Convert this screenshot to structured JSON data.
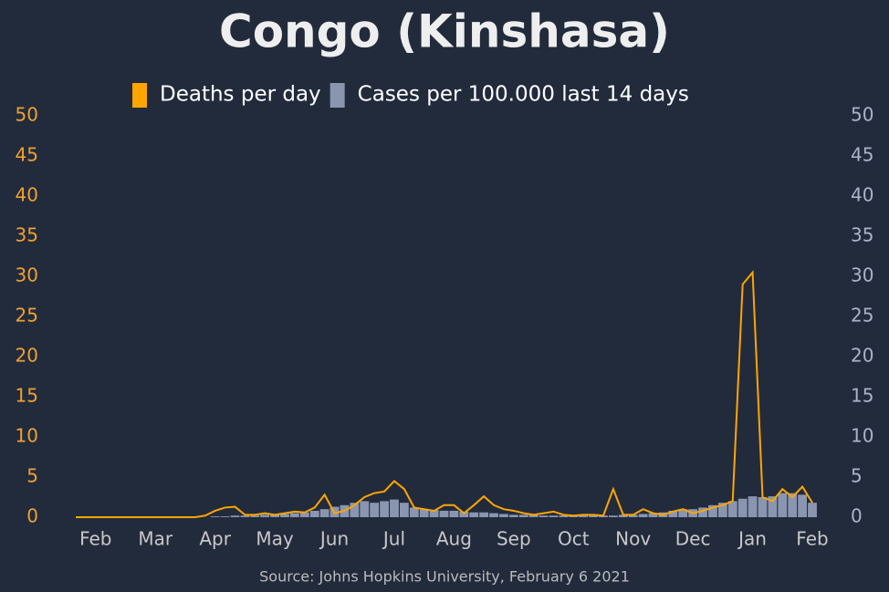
{
  "chart_data": {
    "type": "line-bar",
    "title": "Congo (Kinshasa)",
    "source": "Source: Johns Hopkins University, February 6 2021",
    "categories": [
      null,
      null,
      "Feb",
      null,
      null,
      null,
      null,
      null,
      "Mar",
      null,
      null,
      null,
      null,
      null,
      "Apr",
      null,
      null,
      null,
      null,
      null,
      "May",
      null,
      null,
      null,
      null,
      null,
      "Jun",
      null,
      null,
      null,
      null,
      null,
      "Jul",
      null,
      null,
      null,
      null,
      null,
      "Aug",
      null,
      null,
      null,
      null,
      null,
      "Sep",
      null,
      null,
      null,
      null,
      null,
      "Oct",
      null,
      null,
      null,
      null,
      null,
      "Nov",
      null,
      null,
      null,
      null,
      null,
      "Dec",
      null,
      null,
      null,
      null,
      null,
      "Jan",
      null,
      null,
      null,
      null,
      null,
      "Feb"
    ],
    "series": [
      {
        "name": "Deaths per day",
        "color": "#ffa500",
        "kind": "line",
        "values": [
          0,
          0,
          0,
          0,
          0,
          0,
          0,
          0,
          0,
          0,
          0,
          0,
          0,
          0.2,
          0.8,
          1.2,
          1.3,
          0.3,
          0.3,
          0.5,
          0.3,
          0.5,
          0.7,
          0.6,
          1.2,
          2.8,
          0.5,
          0.8,
          1.5,
          2.5,
          3.0,
          3.2,
          4.5,
          3.5,
          1.2,
          1.0,
          0.8,
          1.5,
          1.5,
          0.5,
          1.5,
          2.6,
          1.5,
          1.0,
          0.8,
          0.5,
          0.3,
          0.5,
          0.7,
          0.3,
          0.2,
          0.3,
          0.3,
          0.2,
          3.5,
          0.3,
          0.3,
          1.0,
          0.5,
          0.3,
          0.7,
          1.0,
          0.5,
          0.8,
          1.2,
          1.5,
          2.0,
          29,
          30.5,
          2.5,
          2.0,
          3.5,
          2.5,
          3.8,
          1.8
        ]
      },
      {
        "name": "Cases per 100.000 last 14 days",
        "color": "#8a96b0",
        "kind": "bar",
        "axis": "y2",
        "values": [
          0,
          0,
          0,
          0,
          0,
          0,
          0,
          0,
          0,
          0,
          0,
          0,
          0,
          0,
          0.1,
          0.1,
          0.2,
          0.2,
          0.2,
          0.3,
          0.3,
          0.4,
          0.5,
          0.6,
          0.8,
          1.0,
          1.3,
          1.5,
          1.8,
          2.0,
          1.8,
          2.0,
          2.2,
          1.8,
          1.2,
          1.0,
          0.9,
          0.8,
          0.8,
          0.7,
          0.6,
          0.6,
          0.5,
          0.4,
          0.3,
          0.3,
          0.3,
          0.2,
          0.2,
          0.2,
          0.2,
          0.2,
          0.2,
          0.2,
          0.2,
          0.3,
          0.3,
          0.4,
          0.5,
          0.6,
          0.8,
          1.0,
          1.0,
          1.2,
          1.5,
          1.8,
          2.0,
          2.3,
          2.6,
          2.5,
          2.6,
          3.0,
          3.0,
          2.8,
          1.8
        ]
      }
    ],
    "ylim": [
      0,
      50
    ],
    "yticks": [
      0,
      5,
      10,
      15,
      20,
      25,
      30,
      35,
      40,
      45,
      50
    ],
    "y2lim": [
      0,
      50
    ],
    "y2ticks": [
      0,
      5,
      10,
      15,
      20,
      25,
      30,
      35,
      40,
      45,
      50
    ]
  }
}
